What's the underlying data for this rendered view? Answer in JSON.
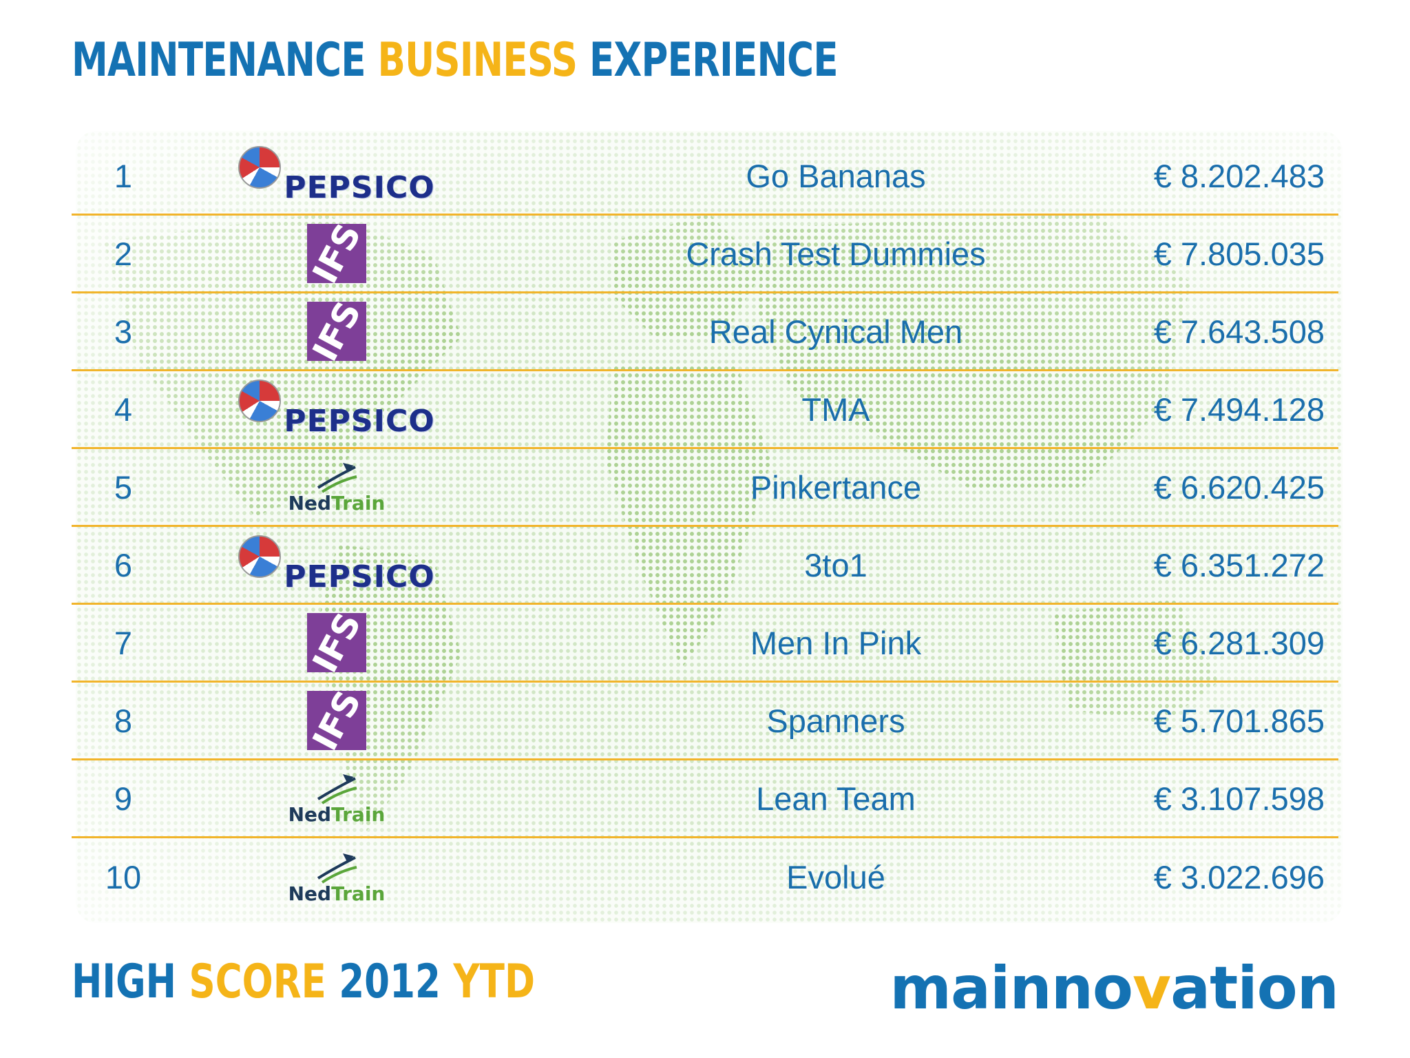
{
  "title": {
    "part1": "MAINTENANCE ",
    "part2": "BUSINESS",
    "part3": " EXPERIENCE"
  },
  "ranking": [
    {
      "rank": "1",
      "logo": "pepsico",
      "logo_text": "PEPSICO",
      "team": "Go Bananas",
      "score": "€ 8.202.483"
    },
    {
      "rank": "2",
      "logo": "ifs",
      "logo_text": "IFS",
      "team": "Crash Test Dummies",
      "score": "€ 7.805.035"
    },
    {
      "rank": "3",
      "logo": "ifs",
      "logo_text": "IFS",
      "team": "Real Cynical Men",
      "score": "€ 7.643.508"
    },
    {
      "rank": "4",
      "logo": "pepsico",
      "logo_text": "PEPSICO",
      "team": "TMA",
      "score": "€ 7.494.128"
    },
    {
      "rank": "5",
      "logo": "nedtrain",
      "logo_text_ned": "Ned",
      "logo_text_train": "Train",
      "team": "Pinkertance",
      "score": "€ 6.620.425"
    },
    {
      "rank": "6",
      "logo": "pepsico",
      "logo_text": "PEPSICO",
      "team": "3to1",
      "score": "€ 6.351.272"
    },
    {
      "rank": "7",
      "logo": "ifs",
      "logo_text": "IFS",
      "team": "Men In Pink",
      "score": "€ 6.281.309"
    },
    {
      "rank": "8",
      "logo": "ifs",
      "logo_text": "IFS",
      "team": "Spanners",
      "score": "€ 5.701.865"
    },
    {
      "rank": "9",
      "logo": "nedtrain",
      "logo_text_ned": "Ned",
      "logo_text_train": "Train",
      "team": "Lean Team",
      "score": "€ 3.107.598"
    },
    {
      "rank": "10",
      "logo": "nedtrain",
      "logo_text_ned": "Ned",
      "logo_text_train": "Train",
      "team": "Evolué",
      "score": "€ 3.022.696"
    }
  ],
  "footer": {
    "part1": "HIGH ",
    "part2": "SCORE",
    "part3": " 2012 ",
    "part4": "YTD"
  },
  "brand": {
    "part1": "mainno",
    "part2": "v",
    "part3": "ation"
  },
  "colors": {
    "primary": "#1472b3",
    "accent": "#f5b418",
    "divider": "#f1b42a",
    "map_dots": "#96c378",
    "ifs_purple": "#7e3f98",
    "pepsico_blue": "#1d2f8a",
    "nedtrain_green": "#5aa63a"
  }
}
